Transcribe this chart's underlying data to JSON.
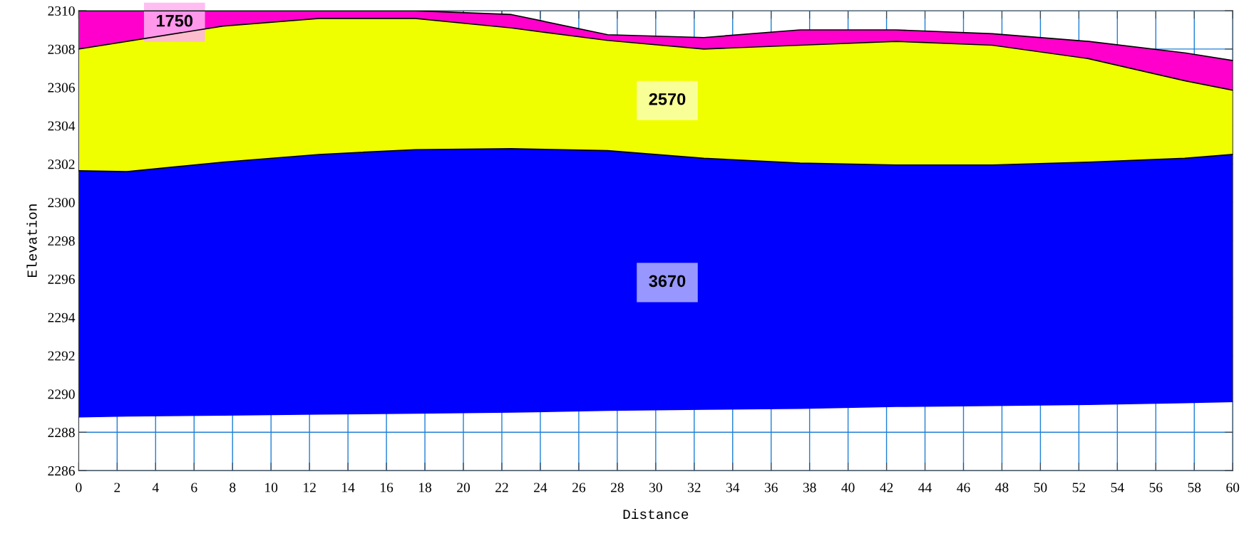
{
  "chart_data": {
    "type": "area",
    "xlabel": "Distance",
    "ylabel": "Elevation",
    "x": [
      0,
      2.5,
      7.5,
      12.5,
      17.5,
      22.5,
      27.5,
      32.5,
      37.5,
      42.5,
      47.5,
      52.5,
      57.5,
      60
    ],
    "series": [
      {
        "type": "line",
        "color": "#0000ff",
        "values": [
          2288.8,
          2288.85,
          2288.9,
          2288.95,
          2289.0,
          2289.05,
          2289.15,
          2289.2,
          2289.25,
          2289.35,
          2289.4,
          2289.45,
          2289.55,
          2289.6
        ]
      },
      {
        "color": "#0000ff",
        "values": [
          2301.65,
          2301.6,
          2302.1,
          2302.5,
          2302.75,
          2302.8,
          2302.7,
          2302.3,
          2302.05,
          2301.95,
          2301.95,
          2302.1,
          2302.3,
          2302.5
        ]
      },
      {
        "color": "#f0ff00",
        "values": [
          2308.0,
          2308.4,
          2309.2,
          2309.6,
          2309.6,
          2309.1,
          2308.45,
          2308.0,
          2308.2,
          2308.4,
          2308.2,
          2307.5,
          2306.35,
          2305.85
        ]
      },
      {
        "color": "#ff00cc",
        "values": [
          2310,
          2310,
          2310,
          2310,
          2310,
          2309.8,
          2308.75,
          2308.6,
          2309.0,
          2309.0,
          2308.8,
          2308.4,
          2307.8,
          2307.4
        ]
      }
    ],
    "annotations": [
      "3670",
      "2570",
      "1750"
    ],
    "xlim": [
      0,
      60
    ],
    "xticks": [
      0,
      2,
      4,
      6,
      8,
      10,
      12,
      14,
      16,
      18,
      20,
      22,
      24,
      26,
      28,
      30,
      32,
      34,
      36,
      38,
      40,
      42,
      44,
      46,
      48,
      50,
      52,
      54,
      56,
      58,
      60
    ],
    "ylim": [
      2286,
      2310
    ],
    "yticks": [
      2286,
      2288,
      2290,
      2292,
      2294,
      2296,
      2298,
      2300,
      2302,
      2304,
      2306,
      2308,
      2310
    ],
    "grid": true
  }
}
